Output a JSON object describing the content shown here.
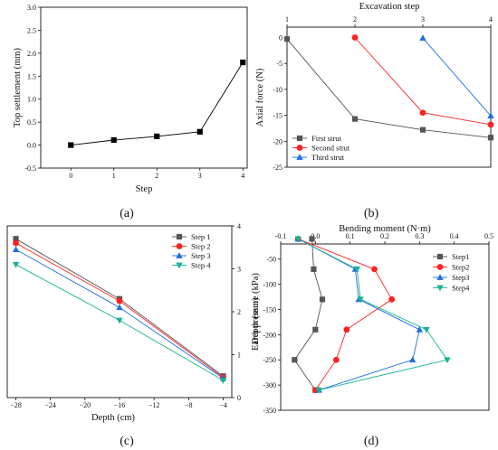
{
  "chart_data": [
    {
      "type": "line",
      "caption": "(a)",
      "xlabel": "Step",
      "ylabel": "Top settlement (mm)",
      "xlim": [
        -0.7,
        4.1
      ],
      "ylim": [
        -0.5,
        3.0
      ],
      "xticks": [
        0,
        1,
        2,
        3,
        4
      ],
      "yticks": [
        -0.5,
        0.0,
        0.5,
        1.0,
        1.5,
        2.0,
        2.5,
        3.0
      ],
      "ytick_labels": [
        "-0.5",
        "0.0",
        "0.5",
        "1.0",
        "1.5",
        "2.0",
        "2.5",
        "3.0"
      ],
      "series": [
        {
          "name": "",
          "color": "#000000",
          "marker": "square",
          "x": [
            0,
            1,
            2,
            3,
            4
          ],
          "y": [
            0.0,
            0.11,
            0.19,
            0.29,
            1.8
          ]
        }
      ]
    },
    {
      "type": "line",
      "caption": "(b)",
      "xlabel": "Excavation step",
      "ylabel": "Axial force  (N)",
      "x_axis_position": "top",
      "xlim": [
        1,
        4
      ],
      "ylim": [
        -25,
        2
      ],
      "xticks": [
        1,
        2,
        3,
        4
      ],
      "yticks": [
        0,
        -5,
        -10,
        -15,
        -20,
        -25
      ],
      "legend_position": "bottom-left",
      "series": [
        {
          "name": "First strut",
          "color": "#555555",
          "marker": "square",
          "x": [
            1,
            2,
            3,
            4
          ],
          "y": [
            -0.3,
            -15.7,
            -17.8,
            -19.3
          ]
        },
        {
          "name": "Second strut",
          "color": "#ff2020",
          "marker": "circle",
          "x": [
            2,
            3,
            4
          ],
          "y": [
            0.0,
            -14.5,
            -16.8
          ]
        },
        {
          "name": "Third strut",
          "color": "#1f6fe0",
          "marker": "triangle",
          "x": [
            3,
            4
          ],
          "y": [
            -0.1,
            -15.1
          ]
        }
      ]
    },
    {
      "type": "line",
      "caption": "(c)",
      "xlabel": "Depth (cm)",
      "ylabel": "Earth pressure (kPa)",
      "y_axis_position": "right",
      "xlim": [
        -29,
        -3
      ],
      "ylim": [
        0,
        4
      ],
      "xticks": [
        -28,
        -24,
        -20,
        -16,
        -12,
        -8,
        -4
      ],
      "xtick_labels": [
        "−28",
        "−24",
        "−20",
        "−16",
        "−12",
        "−8",
        "−4"
      ],
      "yticks": [
        0,
        1,
        2,
        3,
        4
      ],
      "legend_position": "top-right",
      "series": [
        {
          "name": "Step 1",
          "color": "#555555",
          "marker": "square",
          "x": [
            -28,
            -16,
            -4
          ],
          "y": [
            3.7,
            2.3,
            0.5
          ]
        },
        {
          "name": "Step 2",
          "color": "#ff2020",
          "marker": "circle",
          "x": [
            -28,
            -16,
            -4
          ],
          "y": [
            3.6,
            2.25,
            0.47
          ]
        },
        {
          "name": "Step 3",
          "color": "#1f6fe0",
          "marker": "triangle",
          "x": [
            -28,
            -16,
            -4
          ],
          "y": [
            3.45,
            2.1,
            0.45
          ]
        },
        {
          "name": "Step 4",
          "color": "#19b394",
          "marker": "triangle-down",
          "x": [
            -28,
            -16,
            -4
          ],
          "y": [
            3.1,
            1.8,
            0.4
          ]
        }
      ]
    },
    {
      "type": "line",
      "caption": "(d)",
      "xlabel": "Bending moment (N·m)",
      "ylabel": "Depth (mm)",
      "x_axis_position": "top",
      "xlim": [
        -0.1,
        0.5
      ],
      "ylim": [
        -350,
        -20
      ],
      "xticks": [
        -0.1,
        0.0,
        0.1,
        0.2,
        0.3,
        0.4,
        0.5
      ],
      "xtick_labels": [
        "-0.1",
        "0.0",
        "0.1",
        "0.2",
        "0.3",
        "0.4",
        "0.5"
      ],
      "yticks": [
        -50,
        -100,
        -150,
        -200,
        -250,
        -300,
        -350
      ],
      "legend_position": "top-right",
      "series": [
        {
          "name": "Step1",
          "color": "#555555",
          "marker": "square",
          "x": [
            -0.01,
            -0.005,
            0.02,
            0.0,
            -0.06,
            0.0
          ],
          "y": [
            -10,
            -70,
            -130,
            -190,
            -250,
            -310
          ]
        },
        {
          "name": "Step2",
          "color": "#ff2020",
          "marker": "circle",
          "x": [
            -0.05,
            0.17,
            0.22,
            0.09,
            0.06,
            0.0
          ],
          "y": [
            -10,
            -70,
            -130,
            -190,
            -250,
            -310
          ]
        },
        {
          "name": "Step3",
          "color": "#1f6fe0",
          "marker": "triangle",
          "x": [
            -0.05,
            0.115,
            0.125,
            0.3,
            0.28,
            0.01
          ],
          "y": [
            -10,
            -70,
            -130,
            -190,
            -250,
            -310
          ]
        },
        {
          "name": "Step4",
          "color": "#19b394",
          "marker": "triangle-down",
          "x": [
            -0.05,
            0.12,
            0.13,
            0.32,
            0.38,
            0.01
          ],
          "y": [
            -10,
            -70,
            -130,
            -190,
            -250,
            -310
          ]
        }
      ]
    }
  ]
}
